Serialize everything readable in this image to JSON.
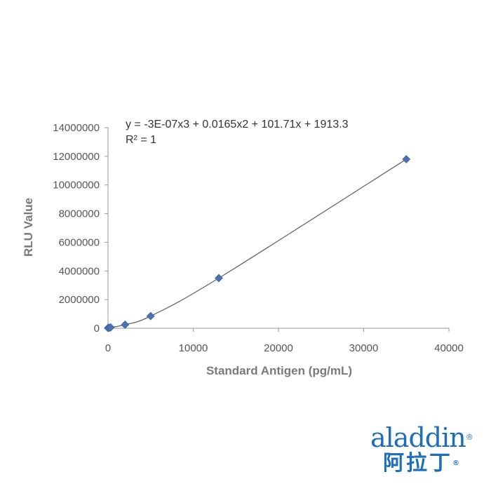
{
  "chart_data": {
    "type": "scatter",
    "xlabel": "Standard Antigen (pg/mL)",
    "ylabel": "RLU Value",
    "xlim": [
      0,
      40000
    ],
    "ylim": [
      0,
      14000000
    ],
    "x_ticks": [
      0,
      10000,
      20000,
      30000,
      40000
    ],
    "y_ticks": [
      0,
      2000000,
      4000000,
      6000000,
      8000000,
      10000000,
      12000000,
      14000000
    ],
    "x_tick_labels": [
      "0",
      "10000",
      "20000",
      "30000",
      "40000"
    ],
    "y_tick_labels": [
      "0",
      "2000000",
      "4000000",
      "6000000",
      "8000000",
      "10000000",
      "12000000",
      "14000000"
    ],
    "grid": false,
    "marker_color": "#4a72b0",
    "trendline_color": "#666666",
    "points": [
      {
        "x": 0,
        "y": 20000
      },
      {
        "x": 150,
        "y": 40000
      },
      {
        "x": 300,
        "y": 60000
      },
      {
        "x": 2000,
        "y": 250000
      },
      {
        "x": 5000,
        "y": 850000
      },
      {
        "x": 13000,
        "y": 3500000
      },
      {
        "x": 35000,
        "y": 11800000
      }
    ],
    "trendline": {
      "type": "polynomial",
      "order": 3,
      "coefficients": [
        -3e-07,
        0.0165,
        101.71,
        1913.3
      ],
      "equation": "y = -3E-07x3 + 0.0165x2 + 101.71x + 1913.3",
      "r_squared": "R² = 1"
    }
  },
  "logo": {
    "word": "aladdin",
    "chinese": "阿拉丁",
    "reg_mark": "®",
    "color": "#1f6fb8"
  }
}
